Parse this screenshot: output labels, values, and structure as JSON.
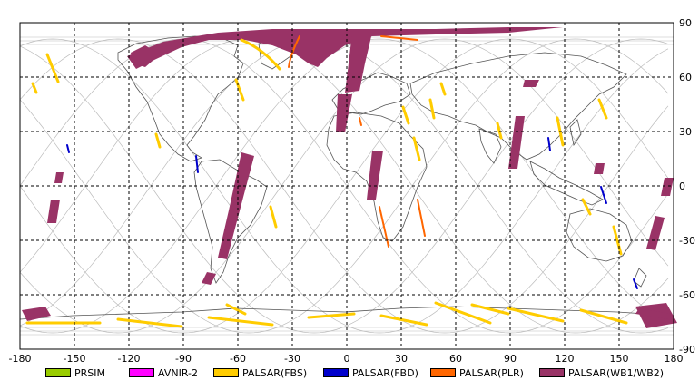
{
  "map": {
    "lon_ticks": [
      "-180",
      "-150",
      "-120",
      "-90",
      "-60",
      "-30",
      "0",
      "30",
      "60",
      "90",
      "120",
      "150",
      "180"
    ],
    "lat_ticks": [
      "90",
      "60",
      "30",
      "0",
      "-30",
      "-60",
      "-90"
    ],
    "lon_range": [
      -180,
      180
    ],
    "lat_range": [
      -90,
      90
    ],
    "grid": "dashed",
    "background": "#ffffff",
    "coastline_color": "#555555",
    "orbit_track_color": "#bbbbbb"
  },
  "legend": {
    "items": [
      {
        "label": "PRSIM",
        "color": "#99cc00"
      },
      {
        "label": "AVNIR-2",
        "color": "#ff00ff"
      },
      {
        "label": "PALSAR(FBS)",
        "color": "#ffcc00"
      },
      {
        "label": "PALSAR(FBD)",
        "color": "#0000cc"
      },
      {
        "label": "PALSAR(PLR)",
        "color": "#ff6600"
      },
      {
        "label": "PALSAR(WB1/WB2)",
        "color": "#993366"
      }
    ]
  }
}
